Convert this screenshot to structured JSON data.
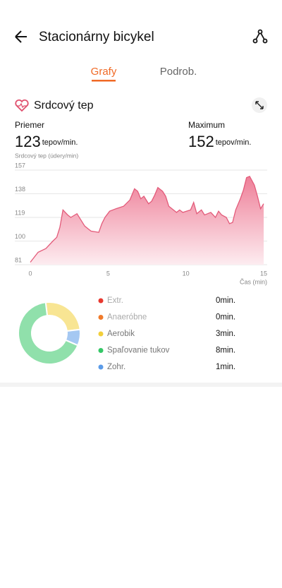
{
  "header": {
    "title": "Stacionárny bicykel"
  },
  "tabs": [
    "Grafy",
    "Podrob."
  ],
  "section": {
    "title": "Srdcový tep",
    "stats": [
      {
        "label": "Priemer",
        "value": 123,
        "unit": "tepov/min."
      },
      {
        "label": "Maximum",
        "value": 152,
        "unit": "tepov/min."
      }
    ]
  },
  "chart_data": [
    {
      "type": "area",
      "y_label": "Srdcový tep (údery/min)",
      "x_label": "Čas (min)",
      "x": [
        0,
        0.5,
        1,
        1.45,
        1.7,
        1.9,
        2.1,
        2.4,
        2.6,
        3,
        3.5,
        3.9,
        4.4,
        4.6,
        4.8,
        5.1,
        5.5,
        6,
        6.4,
        6.7,
        6.9,
        7.1,
        7.3,
        7.6,
        7.8,
        8,
        8.2,
        8.5,
        8.7,
        8.9,
        9.2,
        9.4,
        9.6,
        9.8,
        10.3,
        10.5,
        10.7,
        11,
        11.2,
        11.4,
        11.6,
        11.9,
        12.1,
        12.3,
        12.6,
        12.8,
        13,
        13.2,
        13.5,
        13.7,
        13.9,
        14.1,
        14.4,
        14.6,
        14.8,
        15
      ],
      "series": [
        {
          "color": "#e35b7a",
          "values": [
            83,
            91,
            94,
            100,
            103,
            111,
            125,
            121,
            119,
            122,
            112,
            108,
            107,
            114,
            119,
            124,
            126,
            128,
            133,
            142,
            140,
            134,
            136,
            130,
            132,
            137,
            143,
            140,
            136,
            128,
            125,
            123,
            125,
            123,
            125,
            131,
            122,
            125,
            121,
            122,
            123,
            119,
            124,
            121,
            119,
            114,
            115,
            125,
            134,
            141,
            151,
            152,
            145,
            136,
            126,
            130
          ]
        }
      ],
      "xlim": [
        0,
        15
      ],
      "xticks": [
        0,
        5,
        10,
        15
      ],
      "ylim": [
        81,
        157
      ],
      "yticks": [
        81,
        100,
        119,
        138,
        157
      ],
      "grid": true
    },
    {
      "type": "donut",
      "categories": [
        "Extr.",
        "Anaeróbne",
        "Aerobik",
        "Spaľovanie tukov",
        "Zohr."
      ],
      "values": [
        0,
        0,
        3,
        8,
        1
      ],
      "value_labels": [
        "0min.",
        "0min.",
        "3min.",
        "8min.",
        "1min."
      ],
      "colors": [
        "#e8382f",
        "#f07a2a",
        "#f2cf3a",
        "#34c766",
        "#5b9be8"
      ]
    }
  ]
}
